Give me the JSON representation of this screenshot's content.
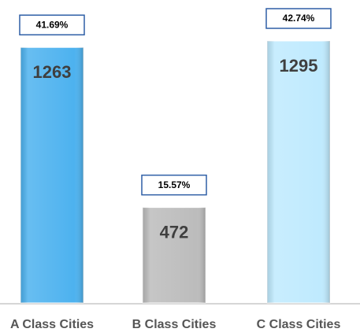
{
  "chart_data": {
    "type": "bar",
    "categories": [
      "A Class Cities",
      "B Class Cities",
      "C Class Cities"
    ],
    "values": [
      1263,
      472,
      1295
    ],
    "annotations": [
      "41.69%",
      "15.57%",
      "42.74%"
    ],
    "colors": [
      "#4db2ef",
      "#bcbcbc",
      "#bfeafe"
    ]
  }
}
